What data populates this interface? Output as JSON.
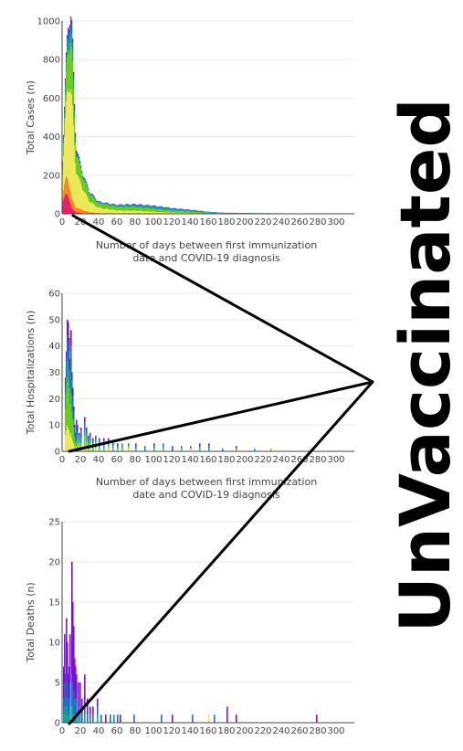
{
  "banner_text": "UnVaccinated",
  "colors": {
    "purple": "#7b10d6",
    "blue": "#1f6fc4",
    "teal": "#16a39a",
    "green": "#6ccc1a",
    "yellow": "#ece85a",
    "orange": "#f78a1d",
    "red": "#e81f6c",
    "grid": "#e8e8e8",
    "axis": "#444444",
    "arrow": "#000000"
  },
  "chart_data": [
    {
      "type": "bar",
      "stacked": true,
      "ylabel": "Total Cases (n)",
      "xlabel_lines": [
        "Number of days between first immunization",
        "date and COVID-19 diagnosis"
      ],
      "xlim": [
        0,
        320
      ],
      "ylim": [
        0,
        1000
      ],
      "x_ticks": [
        0,
        20,
        40,
        60,
        80,
        100,
        120,
        140,
        160,
        180,
        200,
        220,
        240,
        260,
        280,
        300
      ],
      "y_ticks": [
        0,
        200,
        400,
        600,
        800,
        1000
      ],
      "grid": true,
      "total_profile": [
        [
          0,
          220
        ],
        [
          3,
          560
        ],
        [
          5,
          800
        ],
        [
          7,
          960
        ],
        [
          9,
          1005
        ],
        [
          11,
          900
        ],
        [
          13,
          600
        ],
        [
          15,
          360
        ],
        [
          17,
          300
        ],
        [
          20,
          240
        ],
        [
          25,
          170
        ],
        [
          30,
          110
        ],
        [
          40,
          60
        ],
        [
          60,
          45
        ],
        [
          80,
          48
        ],
        [
          100,
          40
        ],
        [
          120,
          28
        ],
        [
          140,
          20
        ],
        [
          160,
          10
        ],
        [
          180,
          5
        ],
        [
          220,
          3
        ],
        [
          260,
          2
        ],
        [
          320,
          1
        ]
      ],
      "stack_fractions": {
        "red": [
          [
            0,
            0.2
          ],
          [
            10,
            0.03
          ],
          [
            20,
            0.02
          ],
          [
            60,
            0.0
          ],
          [
            320,
            0.0
          ]
        ],
        "orange": [
          [
            0,
            0.15
          ],
          [
            10,
            0.05
          ],
          [
            20,
            0.08
          ],
          [
            60,
            0.02
          ],
          [
            320,
            0.0
          ]
        ],
        "yellow": [
          [
            0,
            0.45
          ],
          [
            10,
            0.55
          ],
          [
            20,
            0.55
          ],
          [
            60,
            0.35
          ],
          [
            120,
            0.2
          ],
          [
            320,
            0.1
          ]
        ],
        "green": [
          [
            0,
            0.15
          ],
          [
            10,
            0.25
          ],
          [
            20,
            0.3
          ],
          [
            60,
            0.4
          ],
          [
            120,
            0.35
          ],
          [
            320,
            0.3
          ]
        ],
        "teal": [
          [
            0,
            0.05
          ],
          [
            10,
            0.07
          ],
          [
            20,
            0.04
          ],
          [
            60,
            0.15
          ],
          [
            120,
            0.25
          ],
          [
            320,
            0.3
          ]
        ],
        "blue": [
          [
            0,
            0.05
          ],
          [
            10,
            0.05
          ],
          [
            20,
            0.01
          ],
          [
            60,
            0.08
          ],
          [
            120,
            0.2
          ],
          [
            320,
            0.3
          ]
        ]
      }
    },
    {
      "type": "bar",
      "stacked": true,
      "ylabel": "Total Hospitalizations (n)",
      "xlabel_lines": [
        "Number of days between first immunization",
        "date and COVID-19 diagnosis"
      ],
      "xlim": [
        0,
        320
      ],
      "ylim": [
        0,
        60
      ],
      "x_ticks": [
        0,
        20,
        40,
        60,
        80,
        100,
        120,
        140,
        160,
        180,
        200,
        220,
        240,
        260,
        280,
        300
      ],
      "y_ticks": [
        0,
        10,
        20,
        30,
        40,
        50,
        60
      ],
      "grid": true,
      "bars": [
        {
          "x": 3,
          "yellow": 6,
          "green": 10,
          "teal": 5,
          "blue": 4,
          "purple": 3
        },
        {
          "x": 4,
          "yellow": 8,
          "green": 14,
          "teal": 6,
          "blue": 6,
          "purple": 4
        },
        {
          "x": 5,
          "yellow": 10,
          "green": 18,
          "teal": 8,
          "blue": 8,
          "purple": 6
        },
        {
          "x": 6,
          "yellow": 9,
          "green": 17,
          "teal": 8,
          "blue": 8,
          "purple": 7
        },
        {
          "x": 7,
          "yellow": 8,
          "green": 16,
          "teal": 7,
          "blue": 7,
          "purple": 5
        },
        {
          "x": 8,
          "yellow": 6,
          "green": 12,
          "teal": 6,
          "blue": 7,
          "purple": 4
        },
        {
          "x": 9,
          "yellow": 7,
          "green": 15,
          "teal": 8,
          "blue": 10,
          "purple": 6
        },
        {
          "x": 10,
          "yellow": 5,
          "green": 10,
          "teal": 6,
          "blue": 6,
          "purple": 3
        },
        {
          "x": 11,
          "yellow": 4,
          "green": 8,
          "teal": 4,
          "blue": 5,
          "purple": 3
        },
        {
          "x": 12,
          "yellow": 3,
          "green": 6,
          "teal": 3,
          "blue": 3,
          "purple": 2
        },
        {
          "x": 13,
          "yellow": 2,
          "green": 3,
          "teal": 2,
          "blue": 2,
          "purple": 1
        },
        {
          "x": 14,
          "yellow": 1,
          "green": 2,
          "teal": 1,
          "blue": 2,
          "purple": 1
        },
        {
          "x": 15,
          "yellow": 2,
          "green": 2,
          "teal": 2,
          "blue": 4,
          "purple": 2
        },
        {
          "x": 16,
          "yellow": 1,
          "green": 2,
          "teal": 2,
          "blue": 3,
          "purple": 2
        },
        {
          "x": 18,
          "yellow": 1,
          "green": 2,
          "teal": 1,
          "blue": 2,
          "purple": 1
        },
        {
          "x": 20,
          "yellow": 1,
          "green": 2,
          "teal": 2,
          "blue": 3,
          "purple": 1
        },
        {
          "x": 24,
          "yellow": 2,
          "green": 4,
          "teal": 2,
          "blue": 3,
          "purple": 2
        },
        {
          "x": 26,
          "yellow": 1,
          "green": 3,
          "teal": 2,
          "blue": 2,
          "purple": 1
        },
        {
          "x": 28,
          "yellow": 0,
          "green": 2,
          "teal": 1,
          "blue": 2,
          "purple": 1
        },
        {
          "x": 30,
          "yellow": 1,
          "green": 2,
          "teal": 1,
          "blue": 2,
          "purple": 1
        },
        {
          "x": 33,
          "yellow": 0,
          "green": 1,
          "teal": 1,
          "blue": 2,
          "purple": 1
        },
        {
          "x": 36,
          "yellow": 1,
          "green": 2,
          "teal": 1,
          "blue": 2,
          "purple": 0
        },
        {
          "x": 40,
          "yellow": 0,
          "green": 1,
          "teal": 1,
          "blue": 2,
          "purple": 1
        },
        {
          "x": 45,
          "yellow": 0,
          "green": 1,
          "teal": 1,
          "blue": 2,
          "purple": 1
        },
        {
          "x": 50,
          "yellow": 1,
          "green": 1,
          "teal": 1,
          "blue": 1,
          "purple": 1
        },
        {
          "x": 55,
          "yellow": 0,
          "green": 1,
          "teal": 1,
          "blue": 2,
          "purple": 0
        },
        {
          "x": 60,
          "yellow": 0,
          "green": 1,
          "teal": 0,
          "blue": 1,
          "purple": 1
        },
        {
          "x": 65,
          "yellow": 0,
          "green": 1,
          "teal": 1,
          "blue": 1,
          "purple": 0
        },
        {
          "x": 72,
          "yellow": 1,
          "green": 1,
          "teal": 0,
          "blue": 1,
          "purple": 0
        },
        {
          "x": 80,
          "yellow": 0,
          "green": 1,
          "teal": 0,
          "blue": 1,
          "purple": 1
        },
        {
          "x": 90,
          "yellow": 0,
          "green": 0,
          "teal": 1,
          "blue": 1,
          "purple": 0
        },
        {
          "x": 100,
          "yellow": 0,
          "green": 1,
          "teal": 0,
          "blue": 1,
          "purple": 1
        },
        {
          "x": 110,
          "yellow": 0,
          "green": 1,
          "teal": 1,
          "blue": 1,
          "purple": 0
        },
        {
          "x": 120,
          "yellow": 0,
          "green": 0,
          "teal": 0,
          "blue": 1,
          "purple": 1
        },
        {
          "x": 130,
          "yellow": 0,
          "green": 1,
          "teal": 0,
          "blue": 1,
          "purple": 0
        },
        {
          "x": 140,
          "yellow": 1,
          "green": 0,
          "teal": 0,
          "blue": 1,
          "purple": 0
        },
        {
          "x": 150,
          "yellow": 0,
          "green": 1,
          "teal": 1,
          "blue": 0,
          "purple": 1
        },
        {
          "x": 160,
          "yellow": 0,
          "green": 0,
          "teal": 1,
          "blue": 1,
          "purple": 1
        },
        {
          "x": 175,
          "yellow": 0,
          "green": 0,
          "teal": 0,
          "blue": 1,
          "purple": 0
        },
        {
          "x": 190,
          "yellow": 0,
          "green": 1,
          "teal": 0,
          "blue": 0,
          "purple": 1
        },
        {
          "x": 210,
          "yellow": 0,
          "green": 0,
          "teal": 1,
          "blue": 0,
          "purple": 0
        },
        {
          "x": 228,
          "yellow": 0,
          "green": 1,
          "teal": 0,
          "blue": 0,
          "purple": 0
        }
      ]
    },
    {
      "type": "bar",
      "stacked": true,
      "ylabel": "Total Deaths (n)",
      "xlim": [
        0,
        320
      ],
      "ylim": [
        0,
        25
      ],
      "x_ticks": [
        0,
        20,
        40,
        60,
        80,
        100,
        120,
        140,
        160,
        180,
        200,
        220,
        240,
        260,
        280,
        300
      ],
      "y_ticks": [
        0,
        5,
        10,
        15,
        20,
        25
      ],
      "grid": true,
      "bars": [
        {
          "x": 1,
          "teal": 1,
          "blue": 2,
          "purple": 4
        },
        {
          "x": 2,
          "teal": 2,
          "blue": 3,
          "purple": 6
        },
        {
          "x": 3,
          "teal": 1,
          "blue": 2,
          "purple": 3
        },
        {
          "x": 4,
          "teal": 2,
          "blue": 4,
          "purple": 7
        },
        {
          "x": 5,
          "teal": 2,
          "blue": 3,
          "purple": 5
        },
        {
          "x": 6,
          "teal": 1,
          "blue": 2,
          "purple": 3
        },
        {
          "x": 7,
          "teal": 1,
          "blue": 2,
          "purple": 4
        },
        {
          "x": 8,
          "teal": 2,
          "blue": 3,
          "purple": 6
        },
        {
          "x": 10,
          "teal": 2,
          "blue": 4,
          "purple": 14
        },
        {
          "x": 11,
          "teal": 2,
          "blue": 3,
          "purple": 10
        },
        {
          "x": 12,
          "teal": 1,
          "blue": 3,
          "purple": 8
        },
        {
          "x": 13,
          "teal": 1,
          "blue": 2,
          "purple": 5
        },
        {
          "x": 14,
          "teal": 1,
          "blue": 2,
          "purple": 4
        },
        {
          "x": 15,
          "teal": 1,
          "blue": 2,
          "purple": 3
        },
        {
          "x": 17,
          "teal": 0,
          "blue": 1,
          "purple": 4
        },
        {
          "x": 19,
          "teal": 1,
          "blue": 1,
          "purple": 3
        },
        {
          "x": 21,
          "teal": 0,
          "blue": 1,
          "purple": 2
        },
        {
          "x": 24,
          "teal": 1,
          "blue": 1,
          "purple": 4
        },
        {
          "x": 27,
          "teal": 0,
          "blue": 1,
          "purple": 2
        },
        {
          "x": 30,
          "teal": 0,
          "blue": 1,
          "purple": 1
        },
        {
          "x": 33,
          "teal": 0,
          "blue": 1,
          "purple": 1
        },
        {
          "x": 38,
          "teal": 1,
          "blue": 1,
          "purple": 1
        },
        {
          "x": 42,
          "teal": 0,
          "blue": 1,
          "purple": 0
        },
        {
          "x": 47,
          "teal": 0,
          "blue": 0,
          "purple": 1
        },
        {
          "x": 52,
          "teal": 0,
          "blue": 1,
          "purple": 0
        },
        {
          "x": 56,
          "teal": 1,
          "blue": 0,
          "purple": 0
        },
        {
          "x": 60,
          "teal": 0,
          "blue": 1,
          "purple": 0
        },
        {
          "x": 63,
          "teal": 0,
          "blue": 0,
          "purple": 1
        },
        {
          "x": 78,
          "teal": 0,
          "blue": 1,
          "purple": 0
        },
        {
          "x": 108,
          "teal": 0,
          "blue": 1,
          "purple": 0
        },
        {
          "x": 120,
          "teal": 0,
          "blue": 0,
          "purple": 1
        },
        {
          "x": 142,
          "teal": 0,
          "blue": 1,
          "purple": 0
        },
        {
          "x": 160,
          "yellow": 1
        },
        {
          "x": 166,
          "teal": 0,
          "blue": 1,
          "purple": 0
        },
        {
          "x": 180,
          "teal": 0,
          "blue": 0,
          "purple": 2
        },
        {
          "x": 190,
          "teal": 0,
          "blue": 0,
          "purple": 1
        },
        {
          "x": 278,
          "teal": 0,
          "blue": 0,
          "purple": 1
        }
      ]
    }
  ]
}
